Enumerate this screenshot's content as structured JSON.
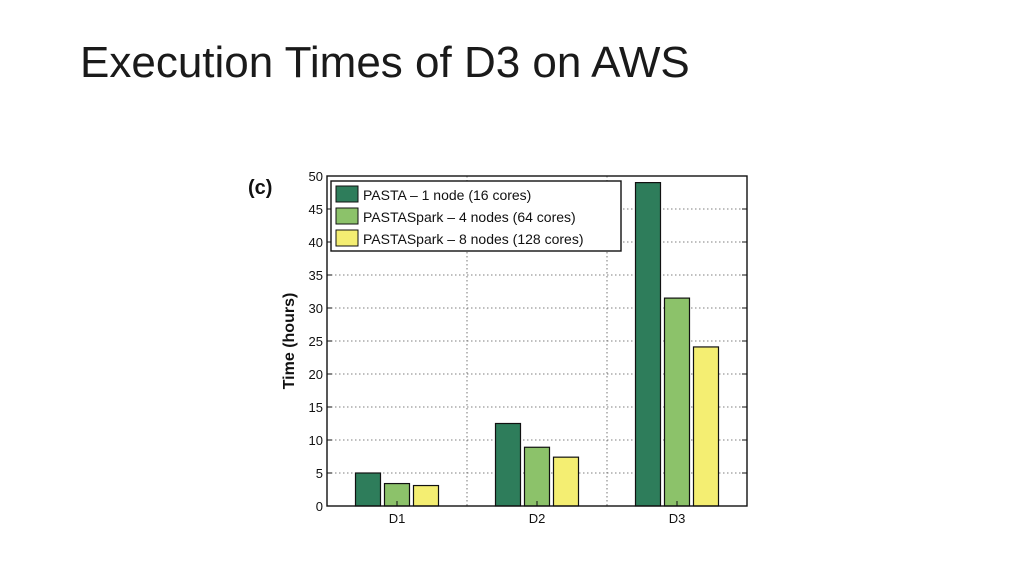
{
  "slide": {
    "title": "Execution Times of D3 on AWS"
  },
  "chart_data": {
    "type": "bar",
    "panel_label": "(c)",
    "title": "",
    "xlabel": "",
    "ylabel": "Time (hours)",
    "ylim": [
      0,
      50
    ],
    "yticks": [
      0,
      5,
      10,
      15,
      20,
      25,
      30,
      35,
      40,
      45,
      50
    ],
    "grid": true,
    "legend_position": "top-left",
    "categories": [
      "D1",
      "D2",
      "D3"
    ],
    "series": [
      {
        "name": "PASTA – 1 node (16 cores)",
        "values": [
          5,
          12.5,
          49
        ],
        "color": "#2e7d5b"
      },
      {
        "name": "PASTASpark – 4 nodes (64 cores)",
        "values": [
          3.4,
          8.9,
          31.5
        ],
        "color": "#8cc26a"
      },
      {
        "name": "PASTASpark – 8 nodes (128 cores)",
        "values": [
          3.1,
          7.4,
          24.1
        ],
        "color": "#f4ee72"
      }
    ]
  }
}
